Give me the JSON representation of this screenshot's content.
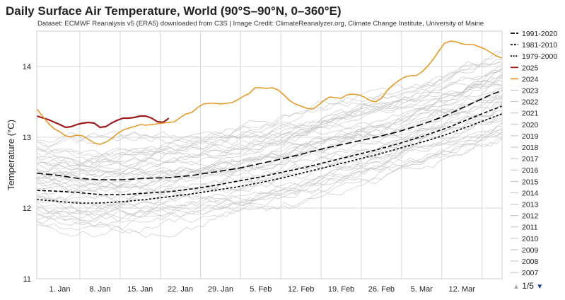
{
  "chart_data": {
    "type": "line",
    "title": "Daily Surface Air Temperature, World (90°S–90°N, 0–360°E)",
    "subtitle": "Dataset: ECMWF Reanalysis v5 (ERA5) downloaded from C3S | Image Credit: ClimateReanalyzer.org, Climate Change Institute, University of Maine",
    "xlabel": "",
    "ylabel": "Temperature (°C)",
    "ylim": [
      11,
      14.5
    ],
    "yticks": [
      11,
      12,
      13,
      14
    ],
    "xlim": [
      -3,
      78
    ],
    "xticks": [
      {
        "day": 1,
        "label": "1. Jan"
      },
      {
        "day": 8,
        "label": "8. Jan"
      },
      {
        "day": 15,
        "label": "15. Jan"
      },
      {
        "day": 22,
        "label": "22. Jan"
      },
      {
        "day": 29,
        "label": "29. Jan"
      },
      {
        "day": 36,
        "label": "5. Feb"
      },
      {
        "day": 43,
        "label": "12. Feb"
      },
      {
        "day": 50,
        "label": "19. Feb"
      },
      {
        "day": 57,
        "label": "26. Feb"
      },
      {
        "day": 64,
        "label": "5. Mar"
      },
      {
        "day": 71,
        "label": "12. Mar"
      }
    ],
    "grid": true,
    "legend_position": "right",
    "series": [
      {
        "name": "1991-2020",
        "style": "longdash",
        "color": "#000000",
        "points": [
          [
            -3,
            12.49
          ],
          [
            0,
            12.47
          ],
          [
            4,
            12.42
          ],
          [
            8,
            12.4
          ],
          [
            12,
            12.4
          ],
          [
            16,
            12.42
          ],
          [
            20,
            12.43
          ],
          [
            24,
            12.46
          ],
          [
            28,
            12.51
          ],
          [
            32,
            12.56
          ],
          [
            36,
            12.63
          ],
          [
            40,
            12.7
          ],
          [
            44,
            12.78
          ],
          [
            48,
            12.86
          ],
          [
            52,
            12.93
          ],
          [
            56,
            13.0
          ],
          [
            60,
            13.08
          ],
          [
            64,
            13.18
          ],
          [
            68,
            13.3
          ],
          [
            72,
            13.45
          ],
          [
            76,
            13.6
          ],
          [
            78,
            13.66
          ]
        ]
      },
      {
        "name": "1981-2010",
        "style": "dash",
        "color": "#000000",
        "points": [
          [
            -3,
            12.25
          ],
          [
            0,
            12.24
          ],
          [
            4,
            12.22
          ],
          [
            8,
            12.19
          ],
          [
            12,
            12.19
          ],
          [
            16,
            12.21
          ],
          [
            20,
            12.23
          ],
          [
            24,
            12.27
          ],
          [
            28,
            12.32
          ],
          [
            32,
            12.38
          ],
          [
            36,
            12.44
          ],
          [
            40,
            12.51
          ],
          [
            44,
            12.58
          ],
          [
            48,
            12.66
          ],
          [
            52,
            12.74
          ],
          [
            56,
            12.82
          ],
          [
            60,
            12.91
          ],
          [
            64,
            13.01
          ],
          [
            68,
            13.12
          ],
          [
            72,
            13.25
          ],
          [
            76,
            13.38
          ],
          [
            78,
            13.44
          ]
        ]
      },
      {
        "name": "1979-2000",
        "style": "shortdash",
        "color": "#000000",
        "points": [
          [
            -3,
            12.12
          ],
          [
            0,
            12.1
          ],
          [
            4,
            12.07
          ],
          [
            8,
            12.07
          ],
          [
            12,
            12.09
          ],
          [
            16,
            12.12
          ],
          [
            20,
            12.16
          ],
          [
            24,
            12.2
          ],
          [
            28,
            12.25
          ],
          [
            32,
            12.3
          ],
          [
            36,
            12.36
          ],
          [
            40,
            12.43
          ],
          [
            44,
            12.51
          ],
          [
            48,
            12.59
          ],
          [
            52,
            12.67
          ],
          [
            56,
            12.75
          ],
          [
            60,
            12.84
          ],
          [
            64,
            12.93
          ],
          [
            68,
            13.03
          ],
          [
            72,
            13.15
          ],
          [
            76,
            13.27
          ],
          [
            78,
            13.33
          ]
        ]
      },
      {
        "name": "2025",
        "style": "solid",
        "color": "#9e1b1b",
        "width": 2.2,
        "points": [
          [
            -3,
            13.3
          ],
          [
            -1,
            13.25
          ],
          [
            1,
            13.18
          ],
          [
            2,
            13.14
          ],
          [
            3,
            13.15
          ],
          [
            4,
            13.18
          ],
          [
            5,
            13.2
          ],
          [
            6,
            13.21
          ],
          [
            7,
            13.2
          ],
          [
            8,
            13.14
          ],
          [
            9,
            13.15
          ],
          [
            10,
            13.2
          ],
          [
            11,
            13.24
          ],
          [
            12,
            13.27
          ],
          [
            13,
            13.27
          ],
          [
            14,
            13.28
          ],
          [
            15,
            13.3
          ],
          [
            16,
            13.3
          ],
          [
            17,
            13.27
          ],
          [
            18,
            13.22
          ],
          [
            19,
            13.21
          ],
          [
            20,
            13.27
          ]
        ]
      },
      {
        "name": "2024",
        "style": "solid",
        "color": "#e69a28",
        "width": 1.6,
        "points": [
          [
            -3,
            13.4
          ],
          [
            -2,
            13.3
          ],
          [
            -1,
            13.2
          ],
          [
            0,
            13.12
          ],
          [
            1,
            13.08
          ],
          [
            2,
            13.02
          ],
          [
            3,
            13.01
          ],
          [
            4,
            13.03
          ],
          [
            5,
            13.02
          ],
          [
            6,
            12.97
          ],
          [
            7,
            12.92
          ],
          [
            8,
            12.9
          ],
          [
            9,
            12.93
          ],
          [
            10,
            12.98
          ],
          [
            11,
            13.05
          ],
          [
            12,
            13.1
          ],
          [
            13,
            13.13
          ],
          [
            14,
            13.15
          ],
          [
            15,
            13.18
          ],
          [
            16,
            13.17
          ],
          [
            17,
            13.18
          ],
          [
            18,
            13.19
          ],
          [
            19,
            13.2
          ],
          [
            20,
            13.21
          ],
          [
            21,
            13.22
          ],
          [
            22,
            13.28
          ],
          [
            23,
            13.33
          ],
          [
            24,
            13.35
          ],
          [
            25,
            13.42
          ],
          [
            26,
            13.47
          ],
          [
            27,
            13.48
          ],
          [
            28,
            13.48
          ],
          [
            29,
            13.47
          ],
          [
            30,
            13.48
          ],
          [
            31,
            13.49
          ],
          [
            32,
            13.53
          ],
          [
            33,
            13.58
          ],
          [
            34,
            13.62
          ],
          [
            35,
            13.7
          ],
          [
            36,
            13.7
          ],
          [
            37,
            13.69
          ],
          [
            38,
            13.7
          ],
          [
            39,
            13.67
          ],
          [
            40,
            13.6
          ],
          [
            41,
            13.52
          ],
          [
            42,
            13.47
          ],
          [
            43,
            13.44
          ],
          [
            44,
            13.41
          ],
          [
            45,
            13.4
          ],
          [
            46,
            13.45
          ],
          [
            47,
            13.52
          ],
          [
            48,
            13.57
          ],
          [
            49,
            13.56
          ],
          [
            50,
            13.55
          ],
          [
            51,
            13.6
          ],
          [
            52,
            13.61
          ],
          [
            53,
            13.6
          ],
          [
            54,
            13.57
          ],
          [
            55,
            13.52
          ],
          [
            56,
            13.5
          ],
          [
            57,
            13.55
          ],
          [
            58,
            13.66
          ],
          [
            59,
            13.74
          ],
          [
            60,
            13.8
          ],
          [
            61,
            13.85
          ],
          [
            62,
            13.87
          ],
          [
            63,
            13.87
          ],
          [
            64,
            13.92
          ],
          [
            65,
            14.0
          ],
          [
            66,
            14.1
          ],
          [
            67,
            14.22
          ],
          [
            68,
            14.33
          ],
          [
            69,
            14.36
          ],
          [
            70,
            14.35
          ],
          [
            71,
            14.32
          ],
          [
            72,
            14.31
          ],
          [
            73,
            14.31
          ],
          [
            74,
            14.28
          ],
          [
            75,
            14.25
          ],
          [
            76,
            14.2
          ],
          [
            77,
            14.15
          ],
          [
            78,
            14.12
          ]
        ]
      }
    ],
    "background_series_count": 45,
    "background_series_color": "#c8c8c8",
    "legend": {
      "entries": [
        {
          "label": "1991-2020",
          "style": "longdash",
          "color": "#000000"
        },
        {
          "label": "1981-2010",
          "style": "dash",
          "color": "#000000"
        },
        {
          "label": "1979-2000",
          "style": "shortdash",
          "color": "#000000"
        },
        {
          "label": "2025",
          "style": "solid",
          "color": "#9e1b1b"
        },
        {
          "label": "2024",
          "style": "solid",
          "color": "#e69a28"
        },
        {
          "label": "2023",
          "style": "gray",
          "color": "#c8c8c8"
        },
        {
          "label": "2022",
          "style": "gray",
          "color": "#c8c8c8"
        },
        {
          "label": "2021",
          "style": "gray",
          "color": "#c8c8c8"
        },
        {
          "label": "2020",
          "style": "gray",
          "color": "#c8c8c8"
        },
        {
          "label": "2019",
          "style": "gray",
          "color": "#c8c8c8"
        },
        {
          "label": "2018",
          "style": "gray",
          "color": "#c8c8c8"
        },
        {
          "label": "2017",
          "style": "gray",
          "color": "#c8c8c8"
        },
        {
          "label": "2016",
          "style": "gray",
          "color": "#c8c8c8"
        },
        {
          "label": "2015",
          "style": "gray",
          "color": "#c8c8c8"
        },
        {
          "label": "2014",
          "style": "gray",
          "color": "#c8c8c8"
        },
        {
          "label": "2013",
          "style": "gray",
          "color": "#c8c8c8"
        },
        {
          "label": "2012",
          "style": "gray",
          "color": "#c8c8c8"
        },
        {
          "label": "2011",
          "style": "gray",
          "color": "#c8c8c8"
        },
        {
          "label": "2010",
          "style": "gray",
          "color": "#c8c8c8"
        },
        {
          "label": "2009",
          "style": "gray",
          "color": "#c8c8c8"
        },
        {
          "label": "2008",
          "style": "gray",
          "color": "#c8c8c8"
        },
        {
          "label": "2007",
          "style": "gray",
          "color": "#c8c8c8"
        }
      ],
      "page_label": "1/5"
    }
  }
}
